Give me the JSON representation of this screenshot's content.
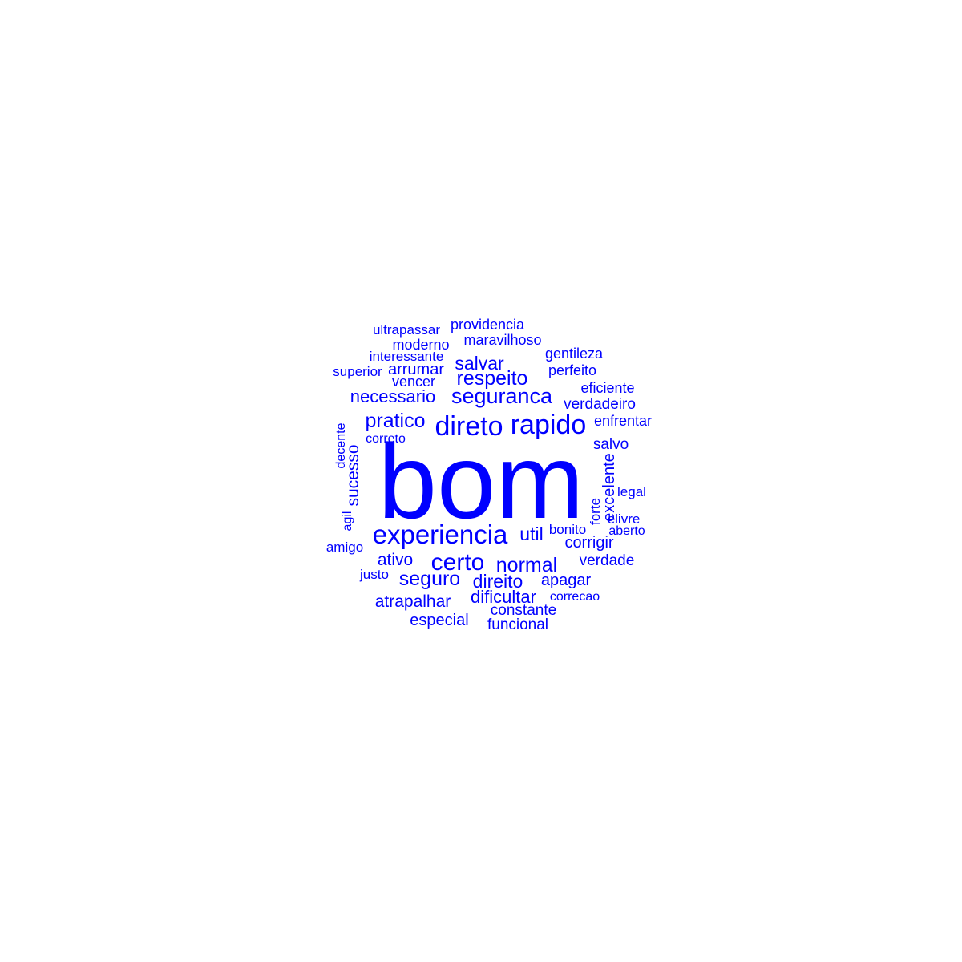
{
  "cloud": {
    "color": "#0000ff",
    "words": [
      {
        "text": "bom"
      },
      {
        "text": "experiencia"
      },
      {
        "text": "rapido"
      },
      {
        "text": "direto"
      },
      {
        "text": "certo"
      },
      {
        "text": "seguranca"
      },
      {
        "text": "pratico"
      },
      {
        "text": "respeito"
      },
      {
        "text": "normal"
      },
      {
        "text": "seguro"
      },
      {
        "text": "salvar"
      },
      {
        "text": "necessario"
      },
      {
        "text": "util"
      },
      {
        "text": "direito"
      },
      {
        "text": "dificultar"
      },
      {
        "text": "atrapalhar"
      },
      {
        "text": "ativo"
      },
      {
        "text": "sucesso"
      },
      {
        "text": "arrumar"
      },
      {
        "text": "especial"
      },
      {
        "text": "apagar"
      },
      {
        "text": "corrigir"
      },
      {
        "text": "excelente"
      },
      {
        "text": "verdade"
      },
      {
        "text": "funcional"
      },
      {
        "text": "constante"
      },
      {
        "text": "verdadeiro"
      },
      {
        "text": "salvo"
      },
      {
        "text": "enfrentar"
      },
      {
        "text": "eficiente"
      },
      {
        "text": "gentileza"
      },
      {
        "text": "perfeito"
      },
      {
        "text": "maravilhoso"
      },
      {
        "text": "providencia"
      },
      {
        "text": "ultrapassar"
      },
      {
        "text": "moderno"
      },
      {
        "text": "interessante"
      },
      {
        "text": "superior"
      },
      {
        "text": "vencer"
      },
      {
        "text": "legal"
      },
      {
        "text": "elivre"
      },
      {
        "text": "aberto"
      },
      {
        "text": "bonito"
      },
      {
        "text": "forte"
      },
      {
        "text": "decente"
      },
      {
        "text": "agil"
      },
      {
        "text": "amigo"
      },
      {
        "text": "justo"
      },
      {
        "text": "correcao"
      },
      {
        "text": "correto"
      }
    ]
  }
}
